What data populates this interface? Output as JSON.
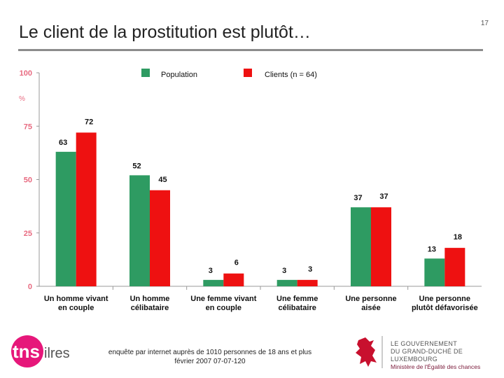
{
  "page_number": "17",
  "title": "Le client de la prostitution est plutôt…",
  "footer": {
    "line1": "enquête par internet auprès de 1010 personnes de 18 ans et plus",
    "line2": "février 2007     07-07-120"
  },
  "logos": {
    "tns_main": "tns",
    "tns_sub": "ilres",
    "gov_line1": "LE GOUVERNEMENT",
    "gov_line2": "DU GRAND-DUCHÉ DE LUXEMBOURG",
    "gov_line3": "Ministère de l'Égalité des chances"
  },
  "colors": {
    "population": "#2e9b62",
    "clients": "#ee1111",
    "axis_label": "#e86a80"
  },
  "chart_data": {
    "type": "bar",
    "ylabel": "%",
    "ylim": [
      0,
      100
    ],
    "yticks": [
      0,
      25,
      50,
      75,
      100
    ],
    "categories": [
      [
        "Un homme vivant",
        "en couple"
      ],
      [
        "Un homme",
        "célibataire"
      ],
      [
        "Une femme vivant",
        "en couple"
      ],
      [
        "Une femme",
        "célibataire"
      ],
      [
        "Une personne",
        "aisée"
      ],
      [
        "Une personne",
        "plutôt défavorisée"
      ]
    ],
    "series": [
      {
        "name": "Population",
        "values": [
          63,
          52,
          3,
          3,
          37,
          13
        ]
      },
      {
        "name": "Clients (n = 64)",
        "values": [
          72,
          45,
          6,
          3,
          37,
          18
        ]
      }
    ],
    "legend_position": "top",
    "grid": false
  }
}
